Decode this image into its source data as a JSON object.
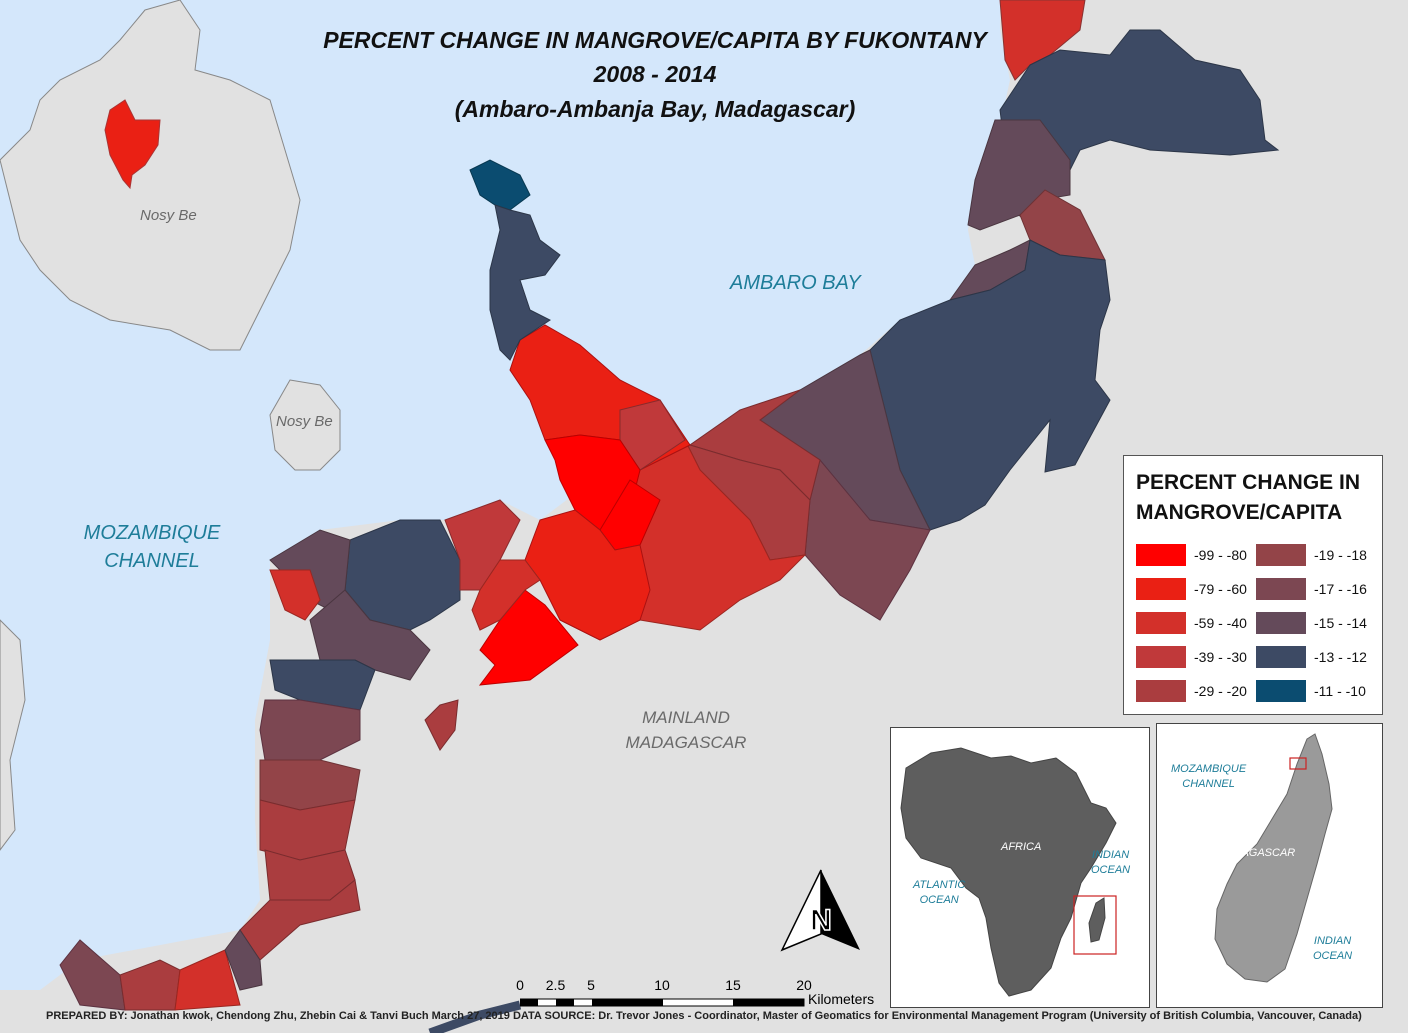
{
  "title": {
    "line1": "PERCENT CHANGE IN MANGROVE/CAPITA BY FUKONTANY",
    "line2": "2008 - 2014",
    "line3": "(Ambaro-Ambanja Bay, Madagascar)"
  },
  "labels": {
    "nosy_be_1": "Nosy Be",
    "nosy_be_2": "Nosy Be",
    "ambaro_bay": "AMBARO BAY",
    "moz_channel_1": "MOZAMBIQUE",
    "moz_channel_2": "CHANNEL",
    "mainland_1": "MAINLAND",
    "mainland_2": "MADAGASCAR"
  },
  "legend": {
    "title_line1": "PERCENT CHANGE IN",
    "title_line2": "MANGROVE/CAPITA",
    "items": [
      {
        "label": "-99 - -80",
        "color": "#ff0000"
      },
      {
        "label": "-79 - -60",
        "color": "#ea2014"
      },
      {
        "label": "-59 - -40",
        "color": "#d3302a"
      },
      {
        "label": "-39 - -30",
        "color": "#c0393a"
      },
      {
        "label": "-29 - -20",
        "color": "#aa3d3f"
      },
      {
        "label": "-19 - -18",
        "color": "#934448"
      },
      {
        "label": "-17 - -16",
        "color": "#7c4752"
      },
      {
        "label": "-15 - -14",
        "color": "#644a5a"
      },
      {
        "label": "-13 - -12",
        "color": "#3d4a64"
      },
      {
        "label": "-11 - -10",
        "color": "#0b4c70"
      }
    ]
  },
  "inset_africa": {
    "africa": "AFRICA",
    "atlantic_1": "ATLANTIC",
    "atlantic_2": "OCEAN",
    "indian_1": "INDIAN",
    "indian_2": "OCEAN"
  },
  "inset_madagascar": {
    "moz_1": "MOZAMBIQUE",
    "moz_2": "CHANNEL",
    "madagascar": "MADAGASCAR",
    "indian_1": "INDIAN",
    "indian_2": "OCEAN"
  },
  "scalebar": {
    "ticks": [
      "0",
      "2.5",
      "5",
      "10",
      "15",
      "20"
    ],
    "unit": "Kilometers"
  },
  "footer": "PREPARED BY: Jonathan kwok, Chendong Zhu, Zhebin Cai & Tanvi Buch    March 27, 2019    DATA SOURCE: Dr. Trevor Jones - Coordinator, Master of Geomatics for Environmental Management Program (University of British Columbia, Vancouver, Canada)",
  "colors": {
    "water": "#d4e7fb",
    "land": "#e1e1e1",
    "water_label": "#1e7d99"
  },
  "north_arrow": "N"
}
